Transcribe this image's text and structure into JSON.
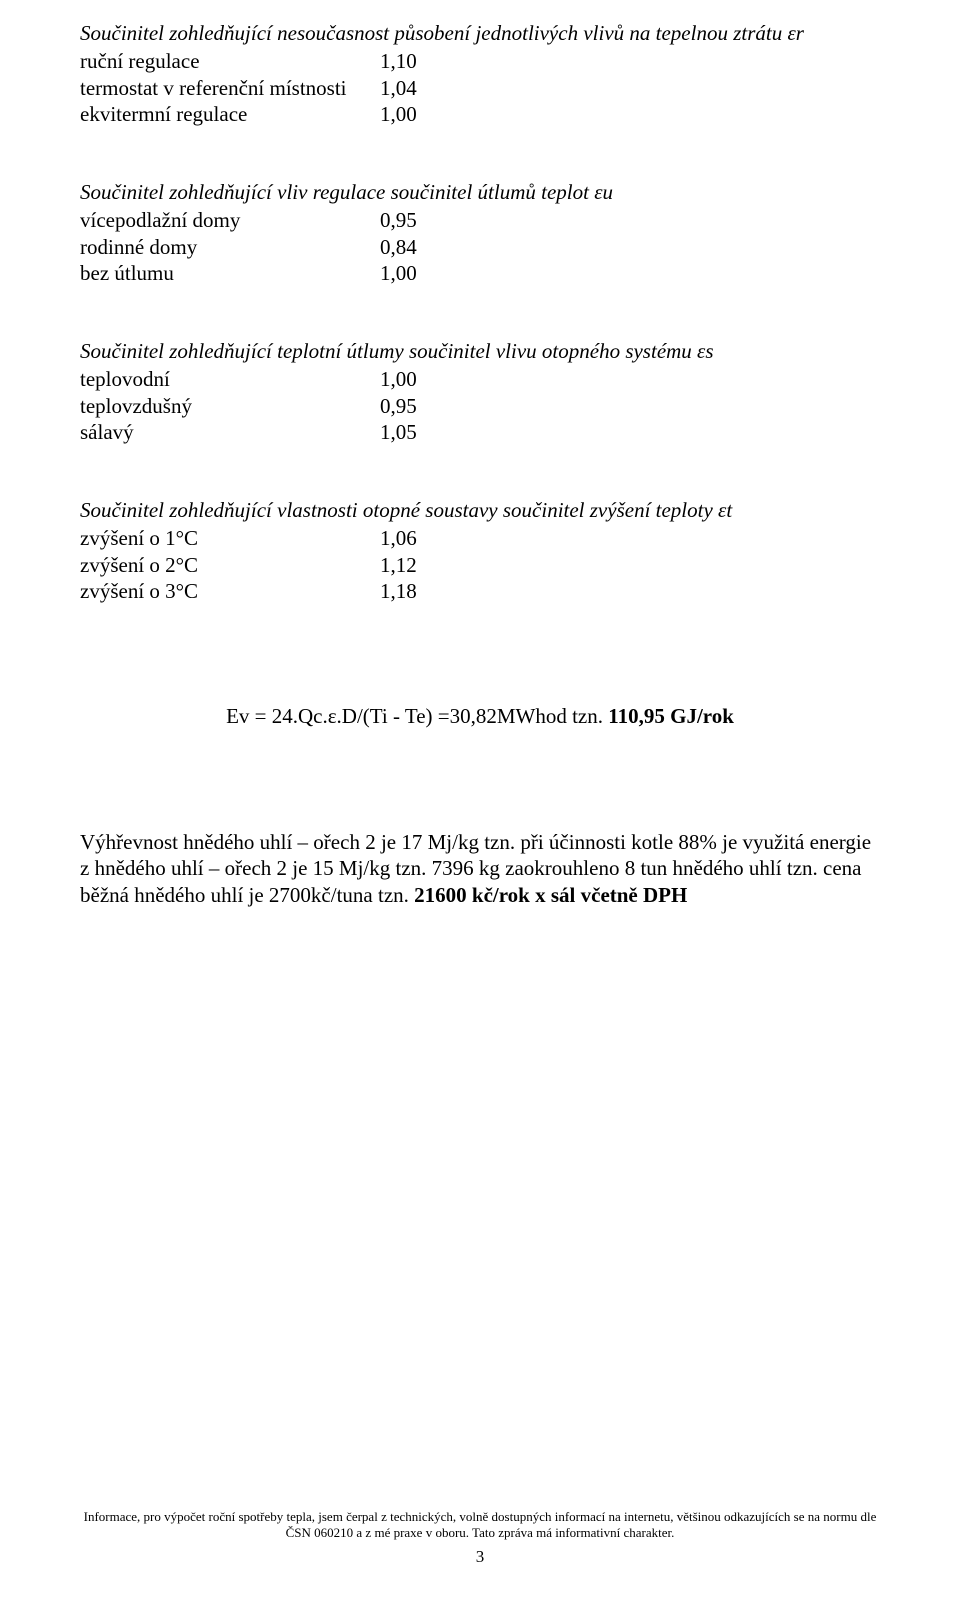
{
  "section1": {
    "title": "Součinitel zohledňující nesoučasnost působení jednotlivých vlivů na tepelnou ztrátu      εr",
    "rows": [
      {
        "label": "ruční regulace",
        "value": "1,10"
      },
      {
        "label": "termostat v referenční místnosti",
        "value": "1,04"
      },
      {
        "label": "ekvitermní regulace",
        "value": "1,00"
      }
    ]
  },
  "section2": {
    "title": "Součinitel zohledňující vliv regulace součinitel útlumů teplot      εu",
    "rows": [
      {
        "label": "vícepodlažní domy",
        "value": "0,95"
      },
      {
        "label": " rodinné domy",
        "value": "0,84"
      },
      {
        "label": "bez útlumu",
        "value": "1,00"
      }
    ]
  },
  "section3": {
    "title": "Součinitel zohledňující teplotní útlumy součinitel vlivu otopného systému     εs",
    "rows": [
      {
        "label": "teplovodní",
        "value": "1,00"
      },
      {
        "label": "teplovzdušný",
        "value": "0,95"
      },
      {
        "label": "sálavý",
        "value": "1,05"
      }
    ]
  },
  "section4": {
    "title": "Součinitel zohledňující vlastnosti otopné soustavy součinitel zvýšení teploty εt",
    "rows": [
      {
        "label": "zvýšení o 1°C",
        "value": "1,06"
      },
      {
        "label": "zvýšení o 2°C",
        "value": "1,12"
      },
      {
        "label": "zvýšení o 3°C",
        "value": "1,18"
      }
    ]
  },
  "formula": {
    "pre": "Ev = 24.Qc.ε.D/(Ti - Te) =30,82MWhod tzn. ",
    "bold": "110,95 GJ/rok"
  },
  "paragraph": {
    "t1": "Výhřevnost ",
    "t2": "hnědého uhlí – ořech 2 je 17 Mj/kg tzn. při účinnosti kotle 88% je využitá energie z hnědého uhlí – ořech 2 je 15 Mj/kg tzn. 7396 kg zaokrouhleno 8 tun hnědého uhlí tzn. cena běžná hnědého uhlí je  2700kč/tuna tzn. ",
    "bold": "21600 kč/rok x sál včetně DPH"
  },
  "footer": {
    "line": "Informace, pro výpočet roční spotřeby tepla, jsem čerpal z technických, volně dostupných informací na internetu, většinou odkazujících se na normu dle ČSN 060210 a z mé praxe v oboru.  Tato zpráva má informativní charakter.",
    "page": "3"
  }
}
